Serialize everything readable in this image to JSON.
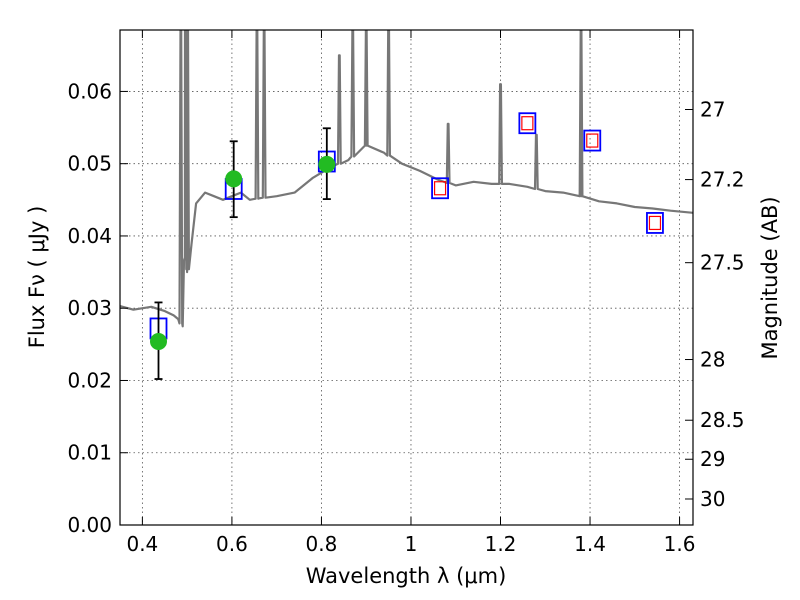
{
  "chart_data": {
    "type": "scatter",
    "title": "",
    "xlabel": "Wavelength  λ (μm)",
    "ylabel": "Flux  Fν  ( μJy )",
    "y2label": "Magnitude (AB)",
    "xlim": [
      0.35,
      1.63
    ],
    "ylim": [
      0.0,
      0.0685
    ],
    "grid": true,
    "x_ticks": [
      0.4,
      0.6,
      0.8,
      1.0,
      1.2,
      1.4,
      1.6
    ],
    "x_tick_labels": [
      "0.4",
      "0.6",
      "0.8",
      "1",
      "1.2",
      "1.4",
      "1.6"
    ],
    "y_ticks": [
      0.0,
      0.01,
      0.02,
      0.03,
      0.04,
      0.05,
      0.06
    ],
    "y_tick_labels": [
      "0.00",
      "0.01",
      "0.02",
      "0.03",
      "0.04",
      "0.05",
      "0.06"
    ],
    "y2_ticks": [
      {
        "label": "27",
        "flux": 0.0575
      },
      {
        "label": "27.2",
        "flux": 0.0478
      },
      {
        "label": "27.5",
        "flux": 0.0363
      },
      {
        "label": "28",
        "flux": 0.0229
      },
      {
        "label": "28.5",
        "flux": 0.0145
      },
      {
        "label": "29",
        "flux": 0.0091
      },
      {
        "label": "30",
        "flux": 0.0036
      }
    ],
    "model_spectrum": {
      "color": "#777777",
      "x": [
        0.35,
        0.38,
        0.42,
        0.45,
        0.47,
        0.48,
        0.49,
        0.495,
        0.5,
        0.51,
        0.52,
        0.54,
        0.56,
        0.58,
        0.6,
        0.62,
        0.64,
        0.66,
        0.7,
        0.74,
        0.78,
        0.82,
        0.86,
        0.9,
        0.94,
        0.98,
        1.02,
        1.06,
        1.1,
        1.14,
        1.18,
        1.22,
        1.26,
        1.3,
        1.34,
        1.38,
        1.42,
        1.46,
        1.5,
        1.54,
        1.58,
        1.63
      ],
      "y": [
        0.0303,
        0.0298,
        0.0302,
        0.0296,
        0.029,
        0.0285,
        0.0275,
        0.037,
        0.035,
        0.039,
        0.0445,
        0.046,
        0.0455,
        0.045,
        0.0455,
        0.046,
        0.045,
        0.0452,
        0.0455,
        0.046,
        0.048,
        0.0495,
        0.0505,
        0.0525,
        0.0515,
        0.05,
        0.049,
        0.0478,
        0.047,
        0.0475,
        0.0472,
        0.0472,
        0.0468,
        0.0462,
        0.046,
        0.0455,
        0.0448,
        0.0445,
        0.044,
        0.0438,
        0.0435,
        0.0432
      ],
      "emission_lines": [
        {
          "x": 0.486,
          "peak": 0.0685
        },
        {
          "x": 0.496,
          "peak": 0.0685
        },
        {
          "x": 0.501,
          "peak": 0.0685
        },
        {
          "x": 0.656,
          "peak": 0.0685
        },
        {
          "x": 0.672,
          "peak": 0.0685
        },
        {
          "x": 0.84,
          "peak": 0.065
        },
        {
          "x": 0.87,
          "peak": 0.0685
        },
        {
          "x": 0.9,
          "peak": 0.0685
        },
        {
          "x": 0.95,
          "peak": 0.0685
        },
        {
          "x": 1.083,
          "peak": 0.0555
        },
        {
          "x": 1.2,
          "peak": 0.061
        },
        {
          "x": 1.28,
          "peak": 0.054
        },
        {
          "x": 1.38,
          "peak": 0.0685
        }
      ]
    },
    "model_photometry": {
      "color": "#0000ff",
      "points": [
        {
          "x": 0.436,
          "y": 0.0272
        },
        {
          "x": 0.604,
          "y": 0.0465
        },
        {
          "x": 0.812,
          "y": 0.0503
        },
        {
          "x": 1.065,
          "y": 0.0466
        },
        {
          "x": 1.26,
          "y": 0.0556
        },
        {
          "x": 1.405,
          "y": 0.0532
        },
        {
          "x": 1.545,
          "y": 0.0418
        }
      ]
    },
    "upper_limits": {
      "color": "#ff0000",
      "points": [
        {
          "x": 1.065,
          "y": 0.0466
        },
        {
          "x": 1.26,
          "y": 0.0556
        },
        {
          "x": 1.405,
          "y": 0.0532
        },
        {
          "x": 1.545,
          "y": 0.0418
        }
      ]
    },
    "observed": {
      "color": "#22bb22",
      "points": [
        {
          "x": 0.436,
          "y": 0.0254,
          "err_low": 0.0202,
          "err_high": 0.0308
        },
        {
          "x": 0.604,
          "y": 0.0479,
          "err_low": 0.0426,
          "err_high": 0.0531
        },
        {
          "x": 0.812,
          "y": 0.0499,
          "err_low": 0.0451,
          "err_high": 0.0549
        }
      ]
    }
  }
}
